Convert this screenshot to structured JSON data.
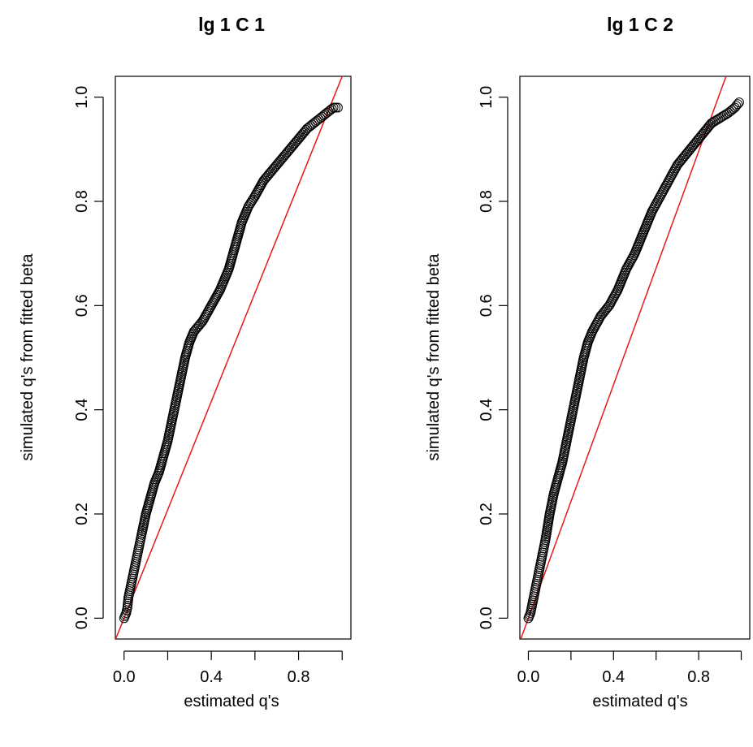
{
  "chart_data": [
    {
      "type": "scatter",
      "title": "lg 1 C 1",
      "xlabel": "estimated q's",
      "ylabel": "simulated q's from fitted beta",
      "xlim": [
        -0.04,
        1.04
      ],
      "ylim": [
        -0.04,
        1.04
      ],
      "x_ticks": [
        0.0,
        0.2,
        0.4,
        0.6,
        0.8,
        1.0
      ],
      "x_tick_labels": [
        "0.0",
        "",
        "0.4",
        "",
        "0.8",
        ""
      ],
      "y_ticks": [
        0.0,
        0.2,
        0.4,
        0.6,
        0.8,
        1.0
      ],
      "y_tick_labels": [
        "0.0",
        "0.2",
        "0.4",
        "0.6",
        "0.8",
        "1.0"
      ],
      "reference_line": {
        "intercept": 0.0,
        "slope": 1.04,
        "color": "#e41a1c"
      },
      "series": [
        {
          "marker": "open-circle",
          "color": "#000000",
          "points": [
            [
              0.0,
              0.0
            ],
            [
              0.01,
              0.01
            ],
            [
              0.015,
              0.02
            ],
            [
              0.02,
              0.04
            ],
            [
              0.03,
              0.06
            ],
            [
              0.04,
              0.08
            ],
            [
              0.05,
              0.1
            ],
            [
              0.06,
              0.12
            ],
            [
              0.07,
              0.14
            ],
            [
              0.08,
              0.16
            ],
            [
              0.1,
              0.2
            ],
            [
              0.12,
              0.23
            ],
            [
              0.14,
              0.26
            ],
            [
              0.16,
              0.28
            ],
            [
              0.18,
              0.31
            ],
            [
              0.2,
              0.34
            ],
            [
              0.22,
              0.38
            ],
            [
              0.24,
              0.42
            ],
            [
              0.26,
              0.46
            ],
            [
              0.28,
              0.5
            ],
            [
              0.3,
              0.53
            ],
            [
              0.32,
              0.55
            ],
            [
              0.36,
              0.57
            ],
            [
              0.4,
              0.6
            ],
            [
              0.44,
              0.63
            ],
            [
              0.48,
              0.67
            ],
            [
              0.5,
              0.7
            ],
            [
              0.52,
              0.73
            ],
            [
              0.54,
              0.76
            ],
            [
              0.57,
              0.79
            ],
            [
              0.6,
              0.81
            ],
            [
              0.64,
              0.84
            ],
            [
              0.68,
              0.86
            ],
            [
              0.72,
              0.88
            ],
            [
              0.76,
              0.9
            ],
            [
              0.8,
              0.92
            ],
            [
              0.84,
              0.94
            ],
            [
              0.87,
              0.95
            ],
            [
              0.9,
              0.96
            ],
            [
              0.93,
              0.97
            ],
            [
              0.96,
              0.98
            ],
            [
              0.98,
              0.98
            ]
          ]
        }
      ]
    },
    {
      "type": "scatter",
      "title": "lg 1 C 2",
      "xlabel": "estimated q's",
      "ylabel": "simulated q's from fitted beta",
      "xlim": [
        -0.04,
        1.04
      ],
      "ylim": [
        -0.04,
        1.04
      ],
      "x_ticks": [
        0.0,
        0.2,
        0.4,
        0.6,
        0.8,
        1.0
      ],
      "x_tick_labels": [
        "0.0",
        "",
        "0.4",
        "",
        "0.8",
        ""
      ],
      "y_ticks": [
        0.0,
        0.2,
        0.4,
        0.6,
        0.8,
        1.0
      ],
      "y_tick_labels": [
        "0.0",
        "0.2",
        "0.4",
        "0.6",
        "0.8",
        "1.0"
      ],
      "reference_line": {
        "intercept": 0.0,
        "slope": 1.12,
        "color": "#e41a1c"
      },
      "series": [
        {
          "marker": "open-circle",
          "color": "#000000",
          "points": [
            [
              0.0,
              0.0
            ],
            [
              0.01,
              0.01
            ],
            [
              0.02,
              0.03
            ],
            [
              0.03,
              0.05
            ],
            [
              0.04,
              0.07
            ],
            [
              0.05,
              0.09
            ],
            [
              0.06,
              0.11
            ],
            [
              0.07,
              0.13
            ],
            [
              0.08,
              0.15
            ],
            [
              0.1,
              0.2
            ],
            [
              0.12,
              0.24
            ],
            [
              0.14,
              0.27
            ],
            [
              0.16,
              0.3
            ],
            [
              0.18,
              0.34
            ],
            [
              0.2,
              0.38
            ],
            [
              0.22,
              0.42
            ],
            [
              0.24,
              0.46
            ],
            [
              0.26,
              0.5
            ],
            [
              0.28,
              0.53
            ],
            [
              0.3,
              0.55
            ],
            [
              0.34,
              0.58
            ],
            [
              0.38,
              0.6
            ],
            [
              0.42,
              0.63
            ],
            [
              0.46,
              0.67
            ],
            [
              0.5,
              0.7
            ],
            [
              0.54,
              0.74
            ],
            [
              0.58,
              0.78
            ],
            [
              0.62,
              0.81
            ],
            [
              0.66,
              0.84
            ],
            [
              0.7,
              0.87
            ],
            [
              0.74,
              0.89
            ],
            [
              0.78,
              0.91
            ],
            [
              0.82,
              0.93
            ],
            [
              0.86,
              0.95
            ],
            [
              0.9,
              0.96
            ],
            [
              0.94,
              0.97
            ],
            [
              0.97,
              0.98
            ],
            [
              0.99,
              0.99
            ]
          ]
        }
      ]
    }
  ]
}
